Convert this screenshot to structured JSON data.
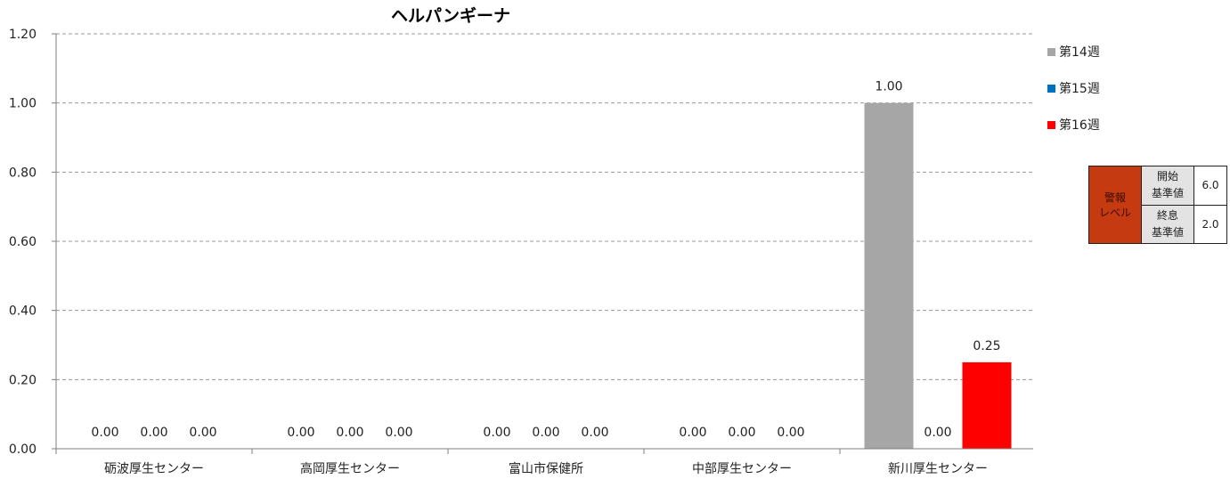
{
  "chart_data": {
    "type": "bar",
    "title": "ヘルパンギーナ",
    "categories": [
      "砺波厚生センター",
      "高岡厚生センター",
      "富山市保健所",
      "中部厚生センター",
      "新川厚生センター"
    ],
    "series": [
      {
        "name": "第14週",
        "color": "#a6a6a6",
        "values": [
          0,
          0,
          0,
          0,
          1.0
        ]
      },
      {
        "name": "第15週",
        "color": "#0070c0",
        "values": [
          0,
          0,
          0,
          0,
          0
        ]
      },
      {
        "name": "第16週",
        "color": "#ff0000",
        "values": [
          0,
          0,
          0,
          0,
          0.25
        ]
      }
    ],
    "y_ticks": [
      "0.00",
      "0.20",
      "0.40",
      "0.60",
      "0.80",
      "1.00",
      "1.20"
    ],
    "ylim": [
      0,
      1.2
    ],
    "data_labels": [
      [
        "0.00",
        "0.00",
        "0.00",
        "0.00",
        "1.00"
      ],
      [
        "0.00",
        "0.00",
        "0.00",
        "0.00",
        "0.00"
      ],
      [
        "0.00",
        "0.00",
        "0.00",
        "0.00",
        "0.25"
      ]
    ],
    "grid": true,
    "legend_position": "right"
  },
  "alert_table": {
    "level_label_line1": "警報",
    "level_label_line2": "レベル",
    "start_label_line1": "開始",
    "start_label_line2": "基準値",
    "start_value": "6.0",
    "end_label_line1": "終息",
    "end_label_line2": "基準値",
    "end_value": "2.0"
  }
}
